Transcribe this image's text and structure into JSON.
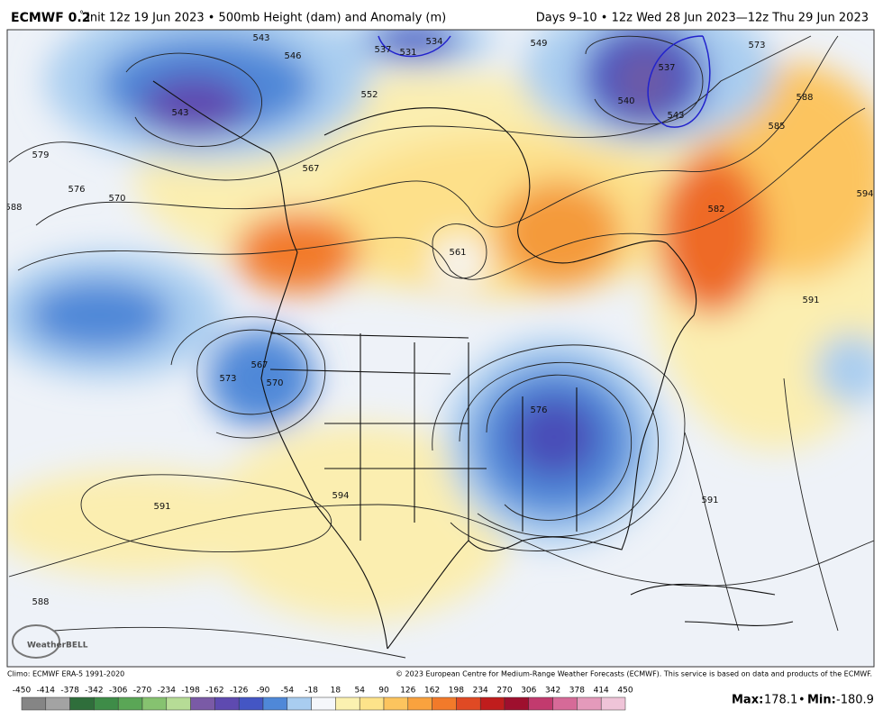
{
  "header": {
    "model": "ECMWF 0.2",
    "degree": "°",
    "left": "Init 12z 19 Jun 2023 • 500mb Height (dam) and Anomaly (m)",
    "right": "Days 9–10 • 12z Wed 28 Jun 2023—12z Thu 29 Jun 2023"
  },
  "map": {
    "contour_labels": [
      "543",
      "546",
      "537",
      "531",
      "534",
      "549",
      "537",
      "540",
      "543",
      "543",
      "552",
      "567",
      "579",
      "576",
      "570",
      "588",
      "585",
      "588",
      "573",
      "582",
      "594",
      "591",
      "561",
      "567",
      "573",
      "570",
      "576",
      "591",
      "594",
      "591",
      "588"
    ],
    "logo": "WeatherBELL"
  },
  "footer": {
    "climo": "Climo: ECMWF ERA-5 1991-2020",
    "copyright": "© 2023 European Centre for Medium-Range Weather Forecasts (ECMWF). This service is based on data and products of the ECMWF."
  },
  "colorbar": {
    "labels": [
      "-450",
      "-414",
      "-378",
      "-342",
      "-306",
      "-270",
      "-234",
      "-198",
      "-162",
      "-126",
      "-90",
      "-54",
      "-18",
      "18",
      "54",
      "90",
      "126",
      "162",
      "198",
      "234",
      "270",
      "306",
      "342",
      "378",
      "414",
      "450"
    ],
    "colors": [
      "#858585",
      "#a3a3a3",
      "#2f6e3b",
      "#3e8c48",
      "#5aa656",
      "#86c270",
      "#b6dc96",
      "#7a5aa6",
      "#5e4ab0",
      "#4456c4",
      "#4f88d8",
      "#a9cdf0",
      "#f5f7fb",
      "#fbf1b0",
      "#fde38a",
      "#fcc45e",
      "#f9a23e",
      "#f27a2a",
      "#e04a24",
      "#c01d1d",
      "#9e0f2e",
      "#c23a6e",
      "#d66a98",
      "#e49abb",
      "#efc4d8"
    ]
  },
  "stats": {
    "max_label": "Max:",
    "max": "178.1",
    "separator": "•",
    "min_label": "Min:",
    "min": "-180.9"
  }
}
